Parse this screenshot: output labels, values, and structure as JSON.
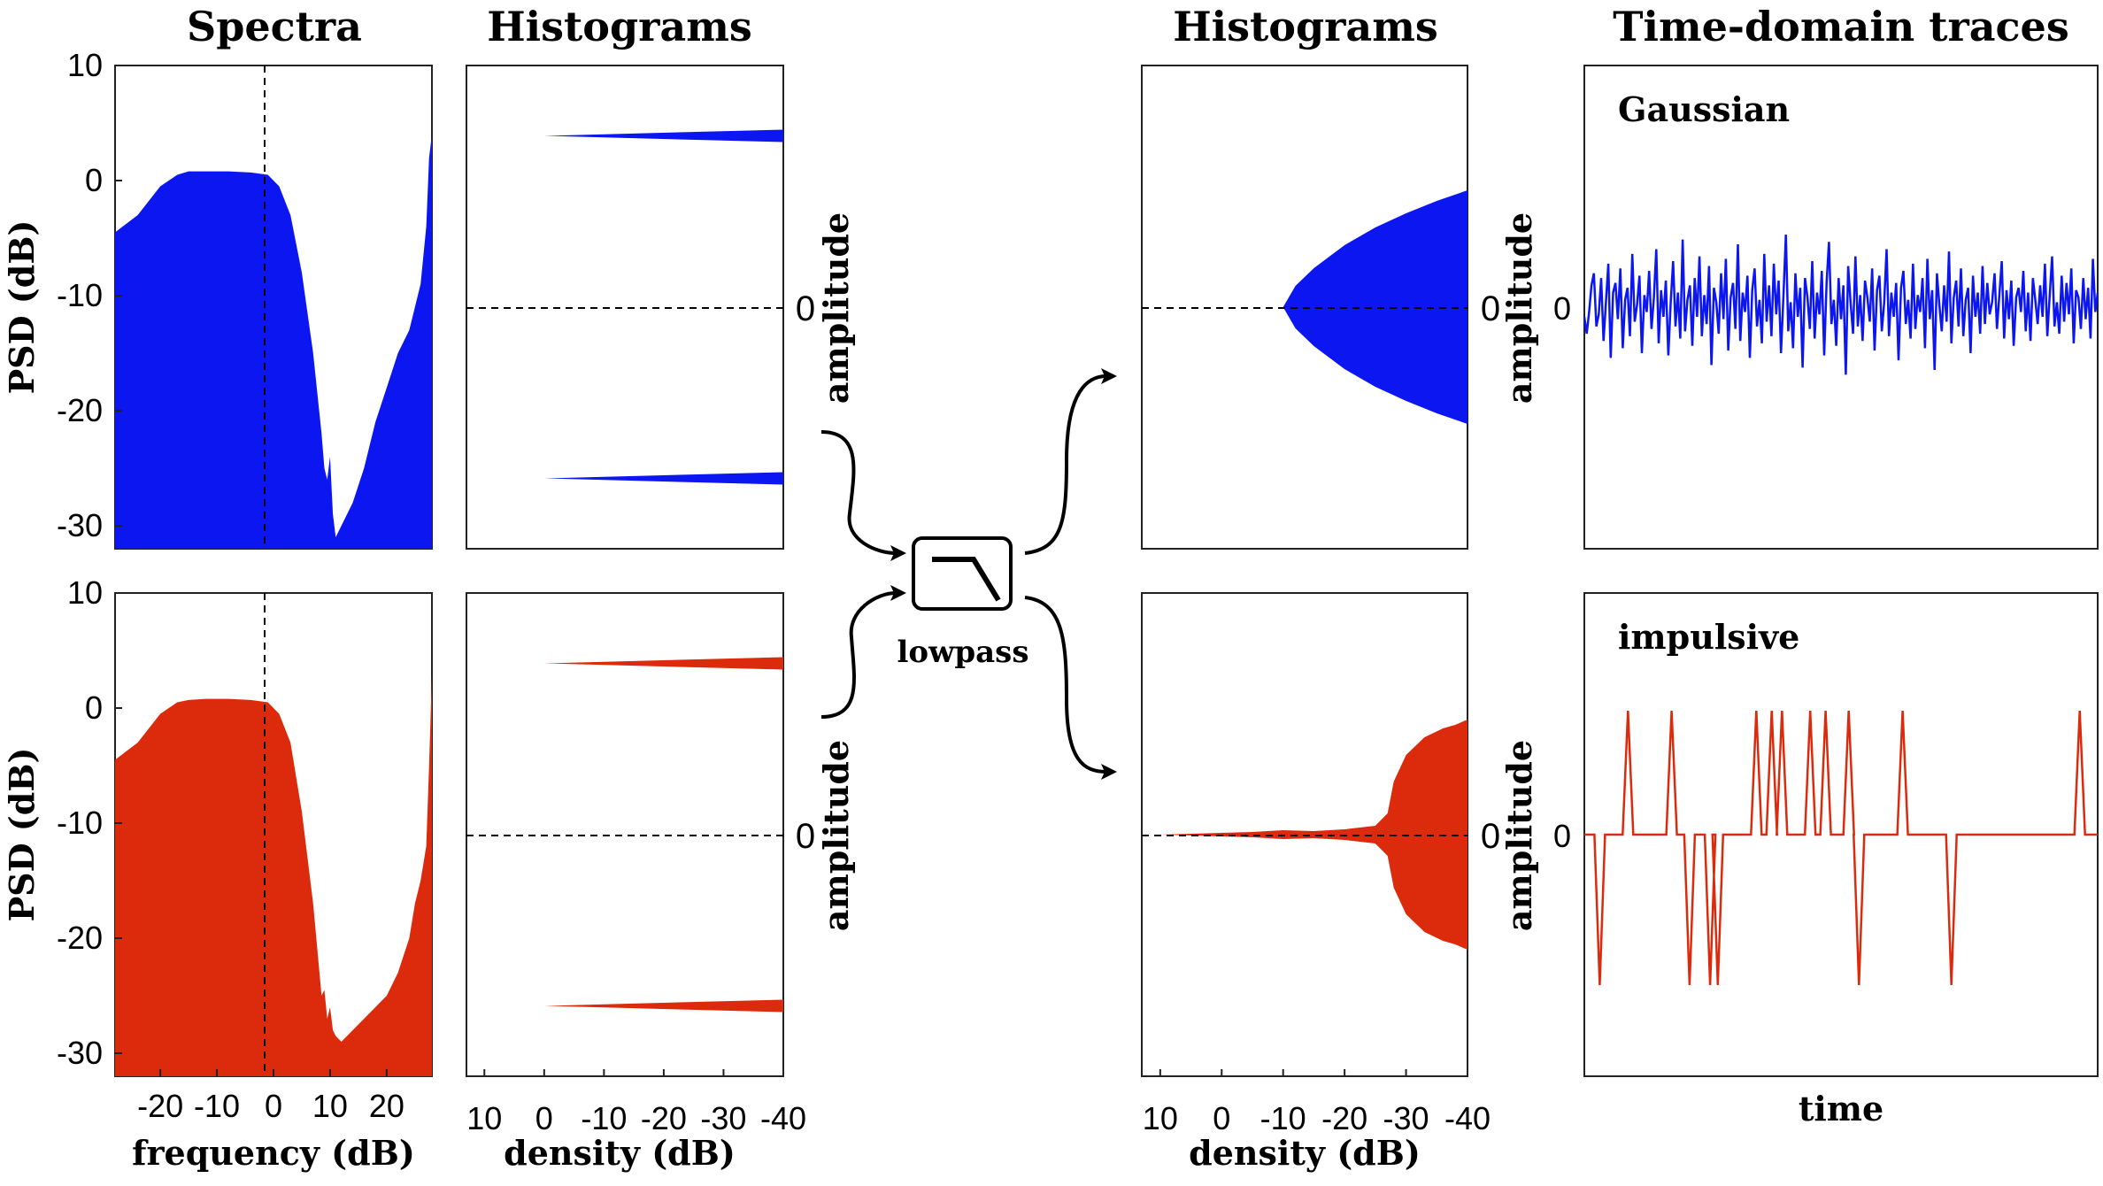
{
  "headers": {
    "spectra": "Spectra",
    "histograms_left": "Histograms",
    "histograms_right": "Histograms",
    "time_domain": "Time-domain traces"
  },
  "labels": {
    "psd_top": "PSD (dB)",
    "psd_bottom": "PSD (dB)",
    "frequency": "frequency (dB)",
    "density_left": "density (dB)",
    "density_right": "density (dB)",
    "amplitude_left_top": "amplitude",
    "amplitude_left_bottom": "amplitude",
    "amplitude_right_top": "amplitude",
    "amplitude_right_bottom": "amplitude",
    "time": "time",
    "zero_hist_left_top": "0",
    "zero_hist_left_bottom": "0",
    "zero_hist_right_top": "0",
    "zero_hist_right_bottom": "0",
    "zero_trace_top": "0",
    "zero_trace_bottom": "0",
    "lowpass": "lowpass",
    "gaussian": "Gaussian",
    "impulsive": "impulsive"
  },
  "colors": {
    "gaussian": "#0b16f0",
    "impulsive": "#dc2b0c",
    "axes": "#222222"
  },
  "icons": {
    "filter": "lowpass-filter-icon",
    "arrows": "curved-arrow-icon"
  },
  "axes": {
    "psd_ticks": [
      "10",
      "0",
      "-10",
      "-20",
      "-30"
    ],
    "psd_range": [
      -32,
      10
    ],
    "freq_ticks": [
      "-20",
      "-10",
      "0",
      "10",
      "20"
    ],
    "freq_range": [
      -28,
      28
    ],
    "density_ticks": [
      "10",
      "0",
      "-10",
      "-20",
      "-30",
      "-40"
    ],
    "density_range": [
      13,
      -40
    ]
  },
  "chart_data": [
    {
      "type": "area",
      "panel": "spectrum-gaussian",
      "series_color": "gaussian",
      "x": [
        -28,
        -24,
        -20,
        -17,
        -15,
        -12,
        -8,
        -4,
        -1,
        1,
        3,
        5,
        7,
        8.5,
        9,
        9.5,
        10,
        10.5,
        11,
        12,
        14,
        16,
        18,
        20,
        22,
        24,
        25,
        26,
        27,
        27.5,
        28
      ],
      "y": [
        -4.5,
        -3,
        -0.5,
        0.5,
        0.8,
        0.8,
        0.8,
        0.7,
        0.5,
        -0.5,
        -3,
        -8,
        -15,
        -22,
        -25,
        -26,
        -24,
        -29,
        -31,
        -30,
        -28,
        -25,
        -21,
        -18,
        -15,
        -13,
        -11,
        -9,
        -4,
        2,
        4
      ],
      "xlim": [
        -28,
        28
      ],
      "ylim": [
        -32,
        10
      ]
    },
    {
      "type": "area",
      "panel": "spectrum-impulsive",
      "series_color": "impulsive",
      "x": [
        -28,
        -24,
        -20,
        -17,
        -15,
        -12,
        -8,
        -4,
        -1,
        1,
        3,
        5,
        7,
        8.5,
        9,
        9.5,
        10,
        10.5,
        11,
        12,
        14,
        16,
        18,
        20,
        22,
        24,
        25,
        26,
        27,
        27.5,
        28
      ],
      "y": [
        -4.5,
        -3,
        -0.5,
        0.5,
        0.7,
        0.8,
        0.8,
        0.7,
        0.5,
        -0.5,
        -3,
        -9,
        -17,
        -25,
        -24.5,
        -27,
        -26,
        -28,
        -28.5,
        -29,
        -28,
        -27,
        -26,
        -25,
        -23,
        -20,
        -17,
        -15,
        -12,
        -5,
        3
      ],
      "xlim": [
        -28,
        28
      ],
      "ylim": [
        -32,
        10
      ]
    },
    {
      "type": "area",
      "panel": "histogram-input",
      "series_color": "gaussian",
      "description_values": "two-level (binary) amplitude distribution",
      "levels": [
        {
          "amplitude": 0.75,
          "density_start": 0,
          "density_end": -40
        },
        {
          "amplitude": -0.75,
          "density_start": 0,
          "density_end": -40
        }
      ]
    },
    {
      "type": "area",
      "panel": "histogram-gaussian-output",
      "series_color": "gaussian",
      "density": [
        -10,
        -12,
        -15,
        -20,
        -25,
        -30,
        -35,
        -40
      ],
      "amplitude": [
        0,
        0.12,
        0.22,
        0.35,
        0.45,
        0.53,
        0.6,
        0.66
      ]
    },
    {
      "type": "area",
      "panel": "histogram-impulsive-output",
      "series_color": "impulsive",
      "density": [
        10,
        0,
        -5,
        -10,
        -15,
        -20,
        -25,
        -27,
        -28,
        -30,
        -33,
        -36,
        -38,
        -40
      ],
      "amplitude": [
        0,
        0.01,
        0.015,
        0.025,
        0.02,
        0.03,
        0.05,
        0.12,
        0.3,
        0.45,
        0.55,
        0.6,
        0.62,
        0.65
      ]
    },
    {
      "type": "line",
      "panel": "trace-gaussian",
      "series_color": "gaussian",
      "ylim": [
        -1,
        1
      ],
      "values": [
        -0.04,
        -0.11,
        -0.02,
        0.09,
        0.14,
        -0.08,
        -0.03,
        0.12,
        -0.14,
        0.02,
        0.18,
        -0.21,
        0.06,
        0.1,
        -0.05,
        0.16,
        -0.17,
        0.03,
        0.08,
        -0.12,
        0.22,
        -0.06,
        0.01,
        0.13,
        -0.19,
        0.05,
        -0.02,
        0.15,
        -0.09,
        0.04,
        0.24,
        -0.15,
        0.07,
        -0.04,
        0.11,
        -0.2,
        0.02,
        0.19,
        -0.08,
        0.06,
        -0.13,
        0.28,
        -0.1,
        0.03,
        0.09,
        -0.16,
        0.12,
        -0.04,
        0.21,
        -0.12,
        0.05,
        -0.07,
        0.17,
        -0.24,
        0.08,
        0.02,
        -0.11,
        0.14,
        -0.05,
        0.2,
        -0.18,
        0.04,
        0.1,
        -0.09,
        0.26,
        -0.14,
        0.06,
        -0.02,
        0.13,
        -0.21,
        0.07,
        0.16,
        -0.08,
        0.03,
        -0.15,
        0.22,
        -0.06,
        0.09,
        -0.12,
        0.18,
        -0.03,
        0.11,
        -0.19,
        0.05,
        0.3,
        -0.1,
        0.02,
        -0.17,
        0.14,
        -0.04,
        0.08,
        -0.25,
        0.12,
        0.04,
        -0.09,
        0.19,
        -0.13,
        0.06,
        -0.03,
        0.15,
        -0.2,
        0.1,
        0.27,
        -0.07,
        0.03,
        -0.16,
        0.12,
        -0.05,
        0.09,
        -0.28,
        0.17,
        0.02,
        -0.11,
        0.21,
        -0.08,
        0.05,
        -0.14,
        0.11,
        0.04,
        -0.06,
        0.16,
        -0.18,
        0.07,
        0.13,
        -0.1,
        0.02,
        0.24,
        -0.12,
        0.06,
        -0.04,
        0.1,
        -0.22,
        0.08,
        0.15,
        -0.07,
        0.03,
        -0.13,
        0.18,
        -0.09,
        0.05,
        -0.02,
        0.12,
        -0.17,
        0.2,
        -0.05,
        0.07,
        -0.26,
        0.14,
        0.01,
        -0.1,
        0.09,
        -0.06,
        0.23,
        -0.15,
        0.04,
        0.11,
        -0.08,
        0.16,
        -0.12,
        0.03,
        0.08,
        -0.19,
        0.13,
        -0.04,
        0.06,
        -0.11,
        0.17,
        -0.07,
        0.1,
        -0.03,
        0.02,
        0.14,
        -0.09,
        0.05,
        0.19,
        -0.13,
        0.07,
        -0.05,
        0.11,
        -0.16,
        0.04,
        0.08,
        -0.02,
        0.15,
        -0.1,
        0.06,
        -0.14,
        0.12,
        0.03,
        -0.07,
        0.09,
        -0.04,
        0.18,
        -0.12,
        0.05,
        0.21,
        -0.08,
        0.02,
        -0.11,
        0.13,
        -0.06,
        0.1,
        -0.03,
        0.16,
        -0.15,
        0.07,
        0.04,
        -0.09,
        0.12,
        -0.05,
        0.08,
        -0.13,
        0.2,
        -0.02,
        0.06
      ]
    },
    {
      "type": "line",
      "panel": "trace-impulsive",
      "series_color": "impulsive",
      "ylim": [
        -1,
        1
      ],
      "spikes": [
        {
          "t": 0.03,
          "amp": -0.85
        },
        {
          "t": 0.085,
          "amp": 0.7
        },
        {
          "t": 0.17,
          "amp": 0.7
        },
        {
          "t": 0.205,
          "amp": -0.85
        },
        {
          "t": 0.245,
          "amp": -0.85
        },
        {
          "t": 0.26,
          "amp": -0.85
        },
        {
          "t": 0.335,
          "amp": 0.7
        },
        {
          "t": 0.365,
          "amp": 0.7
        },
        {
          "t": 0.385,
          "amp": 0.7
        },
        {
          "t": 0.44,
          "amp": 0.7
        },
        {
          "t": 0.47,
          "amp": 0.7
        },
        {
          "t": 0.515,
          "amp": 0.7
        },
        {
          "t": 0.535,
          "amp": -0.85
        },
        {
          "t": 0.62,
          "amp": 0.7
        },
        {
          "t": 0.715,
          "amp": -0.85
        },
        {
          "t": 0.965,
          "amp": 0.7
        }
      ]
    }
  ]
}
